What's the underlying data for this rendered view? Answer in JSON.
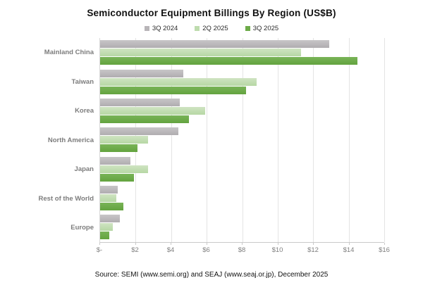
{
  "title": "Semiconductor Equipment Billings By Region (US$B)",
  "footer": "Source: SEMI (www.semi.org) and SEAJ (www.seaj.or.jp), December 2025",
  "colors": {
    "series_gray": "#b8b5b8",
    "series_light_green": "#bedcae",
    "series_green": "#6dab49",
    "gridline": "#e4e4e4",
    "axis_label": "#7f7f7f"
  },
  "chart_data": {
    "type": "bar",
    "orientation": "horizontal",
    "title": "Semiconductor Equipment Billings By Region (US$B)",
    "categories": [
      "Mainland China",
      "Taiwan",
      "Korea",
      "North America",
      "Japan",
      "Rest of the World",
      "Europe"
    ],
    "series": [
      {
        "name": "3Q 2024",
        "color": "#b8b5b8",
        "values": [
          12.9,
          4.7,
          4.5,
          4.4,
          1.7,
          1.0,
          1.1
        ]
      },
      {
        "name": "2Q 2025",
        "color": "#bedcae",
        "values": [
          11.3,
          8.8,
          5.9,
          2.7,
          2.7,
          0.9,
          0.7
        ]
      },
      {
        "name": "3Q 2025",
        "color": "#6dab49",
        "values": [
          14.5,
          8.2,
          5.0,
          2.1,
          1.9,
          1.3,
          0.5
        ]
      }
    ],
    "xlim": [
      0,
      16
    ],
    "x_tick_step": 2,
    "x_tick_labels": [
      "$-",
      "$2",
      "$4",
      "$6",
      "$8",
      "$10",
      "$12",
      "$14",
      "$16"
    ],
    "xlabel": "",
    "ylabel": "",
    "grid": true,
    "legend_position": "top"
  }
}
